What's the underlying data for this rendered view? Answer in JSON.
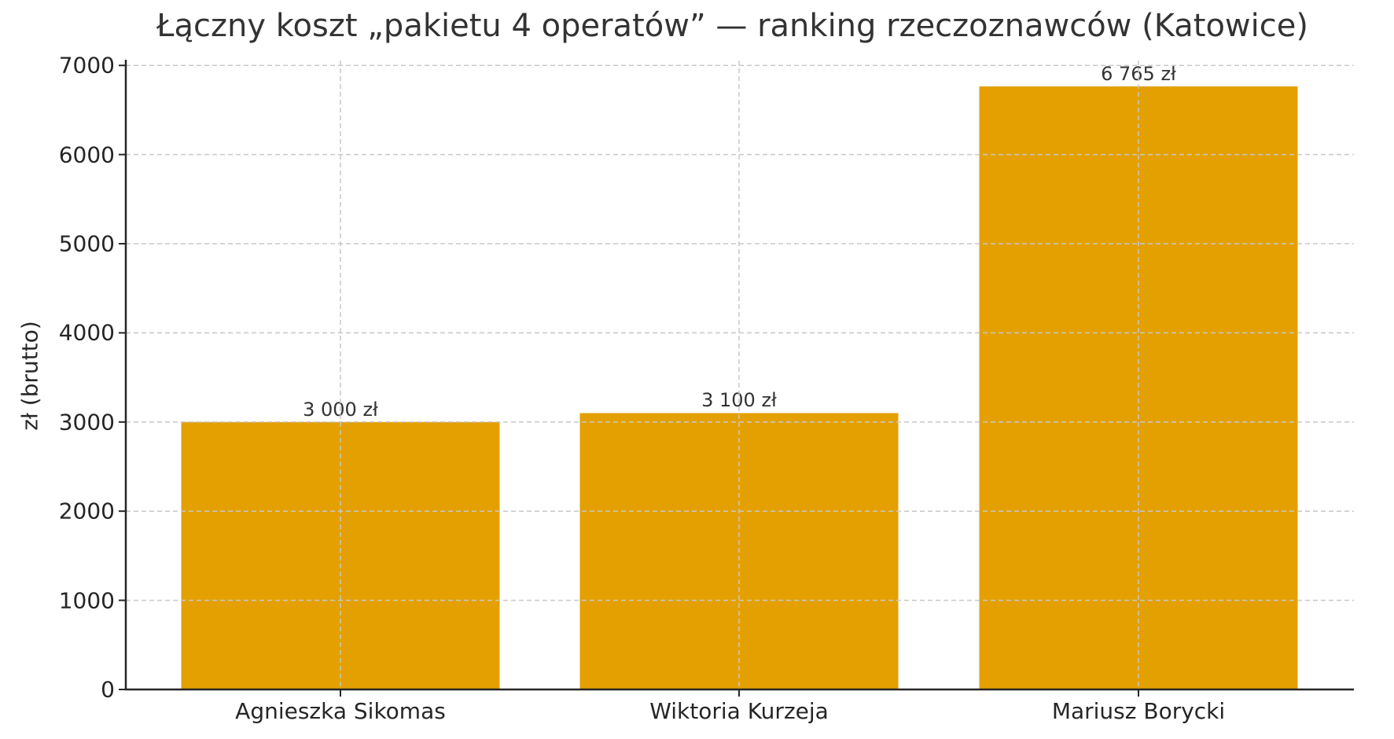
{
  "chart_data": {
    "type": "bar",
    "title": "Łączny koszt „pakietu 4 operatów” — ranking rzeczoznawców (Katowice)",
    "xlabel": "",
    "ylabel": "zł (brutto)",
    "categories": [
      "Agnieszka Sikomas",
      "Wiktoria Kurzeja",
      "Mariusz Borycki"
    ],
    "values": [
      3000,
      3100,
      6765
    ],
    "value_labels": [
      "3 000 zł",
      "3 100 zł",
      "6 765 zł"
    ],
    "ylim": [
      0,
      7100
    ],
    "yticks": [
      0,
      1000,
      2000,
      3000,
      4000,
      5000,
      6000,
      7000
    ],
    "ytick_labels": [
      "0",
      "1000",
      "2000",
      "3000",
      "4000",
      "5000",
      "6000",
      "7000"
    ],
    "grid": true,
    "legend": null,
    "colors": {
      "bar": "#E3A000",
      "grid": "#c8c8c8",
      "axis": "#262626"
    }
  }
}
